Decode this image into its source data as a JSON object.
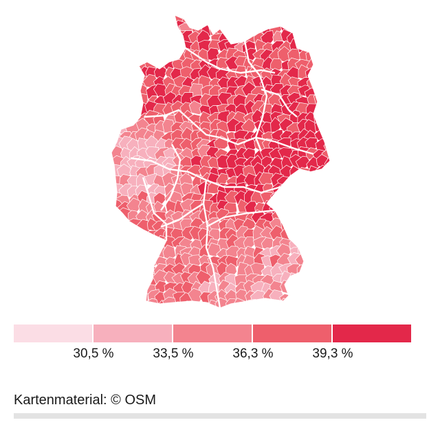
{
  "map": {
    "region": "Germany districts choropleth",
    "classes": [
      {
        "color": "#fbdde5"
      },
      {
        "color": "#f7b0bd"
      },
      {
        "color": "#f3848f"
      },
      {
        "color": "#ee5f6c"
      },
      {
        "color": "#e3284a"
      }
    ],
    "boundary_color": "#ffffff"
  },
  "legend": {
    "breaks": [
      "30,5 %",
      "33,5 %",
      "36,3 %",
      "39,3 %"
    ],
    "colors": [
      "#fbdde5",
      "#f7b0bd",
      "#f3848f",
      "#ee5f6c",
      "#e3284a"
    ]
  },
  "credit": {
    "text": "Kartenmaterial: © OSM"
  }
}
